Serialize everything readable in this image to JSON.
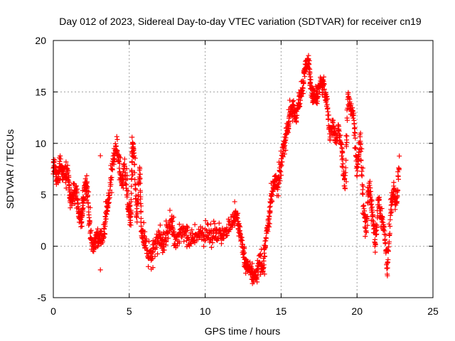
{
  "chart_data": {
    "type": "scatter",
    "title": "Day 012 of 2023, Sidereal Day-to-day VTEC variation (SDTVAR) for receiver cn19",
    "xlabel": "GPS time / hours",
    "ylabel": "SDTVAR / TECUs",
    "xlim": [
      0,
      25
    ],
    "ylim": [
      -5,
      20
    ],
    "xticks": [
      0,
      5,
      10,
      15,
      20,
      25
    ],
    "yticks": [
      -5,
      0,
      5,
      10,
      15,
      20
    ],
    "grid": true,
    "marker": "+",
    "color": "#ff0000",
    "trace_knots": [
      [
        0.0,
        8.0
      ],
      [
        0.15,
        7.2
      ],
      [
        0.3,
        6.5
      ],
      [
        0.45,
        8.2
      ],
      [
        0.6,
        7.0
      ],
      [
        0.8,
        7.2
      ],
      [
        1.0,
        6.8
      ],
      [
        1.1,
        4.5
      ],
      [
        1.3,
        4.5
      ],
      [
        1.5,
        5.5
      ],
      [
        1.7,
        3.0
      ],
      [
        1.9,
        2.5
      ],
      [
        2.0,
        5.0
      ],
      [
        2.2,
        6.5
      ],
      [
        2.4,
        2.0
      ],
      [
        2.6,
        -0.5
      ],
      [
        2.8,
        1.0
      ],
      [
        3.0,
        0.5
      ],
      [
        3.3,
        0.8
      ],
      [
        3.5,
        3.5
      ],
      [
        3.7,
        5.0
      ],
      [
        3.9,
        8.0
      ],
      [
        4.1,
        9.5
      ],
      [
        4.3,
        8.5
      ],
      [
        4.5,
        6.0
      ],
      [
        4.7,
        7.5
      ],
      [
        4.9,
        4.0
      ],
      [
        5.1,
        3.0
      ],
      [
        5.2,
        9.6
      ],
      [
        5.3,
        9.2
      ],
      [
        5.5,
        2.5
      ],
      [
        5.7,
        7.8
      ],
      [
        5.8,
        1.5
      ],
      [
        6.0,
        0.5
      ],
      [
        6.3,
        -1.0
      ],
      [
        6.6,
        -0.5
      ],
      [
        6.9,
        1.0
      ],
      [
        7.2,
        0.0
      ],
      [
        7.5,
        1.5
      ],
      [
        7.8,
        2.5
      ],
      [
        8.0,
        0.5
      ],
      [
        8.3,
        1.0
      ],
      [
        8.6,
        1.5
      ],
      [
        9.0,
        0.5
      ],
      [
        9.4,
        1.0
      ],
      [
        9.8,
        1.2
      ],
      [
        10.2,
        1.0
      ],
      [
        10.6,
        1.3
      ],
      [
        11.0,
        1.0
      ],
      [
        11.4,
        1.5
      ],
      [
        11.8,
        2.5
      ],
      [
        12.0,
        3.0
      ],
      [
        12.2,
        2.0
      ],
      [
        12.4,
        0.5
      ],
      [
        12.6,
        -1.5
      ],
      [
        12.8,
        -2.0
      ],
      [
        13.0,
        -2.5
      ],
      [
        13.2,
        -3.0
      ],
      [
        13.4,
        -2.8
      ],
      [
        13.6,
        -1.0
      ],
      [
        13.8,
        -2.5
      ],
      [
        14.0,
        1.0
      ],
      [
        14.2,
        3.0
      ],
      [
        14.4,
        5.5
      ],
      [
        14.6,
        6.5
      ],
      [
        14.8,
        6.0
      ],
      [
        15.0,
        8.0
      ],
      [
        15.2,
        10.0
      ],
      [
        15.4,
        11.5
      ],
      [
        15.6,
        13.0
      ],
      [
        15.8,
        13.5
      ],
      [
        16.0,
        12.5
      ],
      [
        16.2,
        14.0
      ],
      [
        16.4,
        15.5
      ],
      [
        16.6,
        17.5
      ],
      [
        16.8,
        17.8
      ],
      [
        17.0,
        15.0
      ],
      [
        17.2,
        14.5
      ],
      [
        17.4,
        14.8
      ],
      [
        17.6,
        16.0
      ],
      [
        17.8,
        15.5
      ],
      [
        18.0,
        14.0
      ],
      [
        18.2,
        11.0
      ],
      [
        18.4,
        12.0
      ],
      [
        18.6,
        10.0
      ],
      [
        18.8,
        11.5
      ],
      [
        19.0,
        9.0
      ],
      [
        19.2,
        5.5
      ],
      [
        19.4,
        14.5
      ],
      [
        19.6,
        13.5
      ],
      [
        19.8,
        12.5
      ],
      [
        20.0,
        7.0
      ],
      [
        20.2,
        10.5
      ],
      [
        20.4,
        4.0
      ],
      [
        20.6,
        1.5
      ],
      [
        20.8,
        6.0
      ],
      [
        21.0,
        3.5
      ],
      [
        21.2,
        0.0
      ],
      [
        21.4,
        4.5
      ],
      [
        21.6,
        3.0
      ],
      [
        21.8,
        1.5
      ],
      [
        22.0,
        -2.5
      ],
      [
        22.2,
        3.0
      ],
      [
        22.4,
        5.5
      ],
      [
        22.6,
        4.0
      ],
      [
        22.8,
        8.5
      ]
    ],
    "extra_points": [
      [
        3.1,
        8.8
      ],
      [
        3.1,
        -2.3
      ],
      [
        3.1,
        1.5
      ],
      [
        5.0,
        3.5
      ]
    ]
  }
}
